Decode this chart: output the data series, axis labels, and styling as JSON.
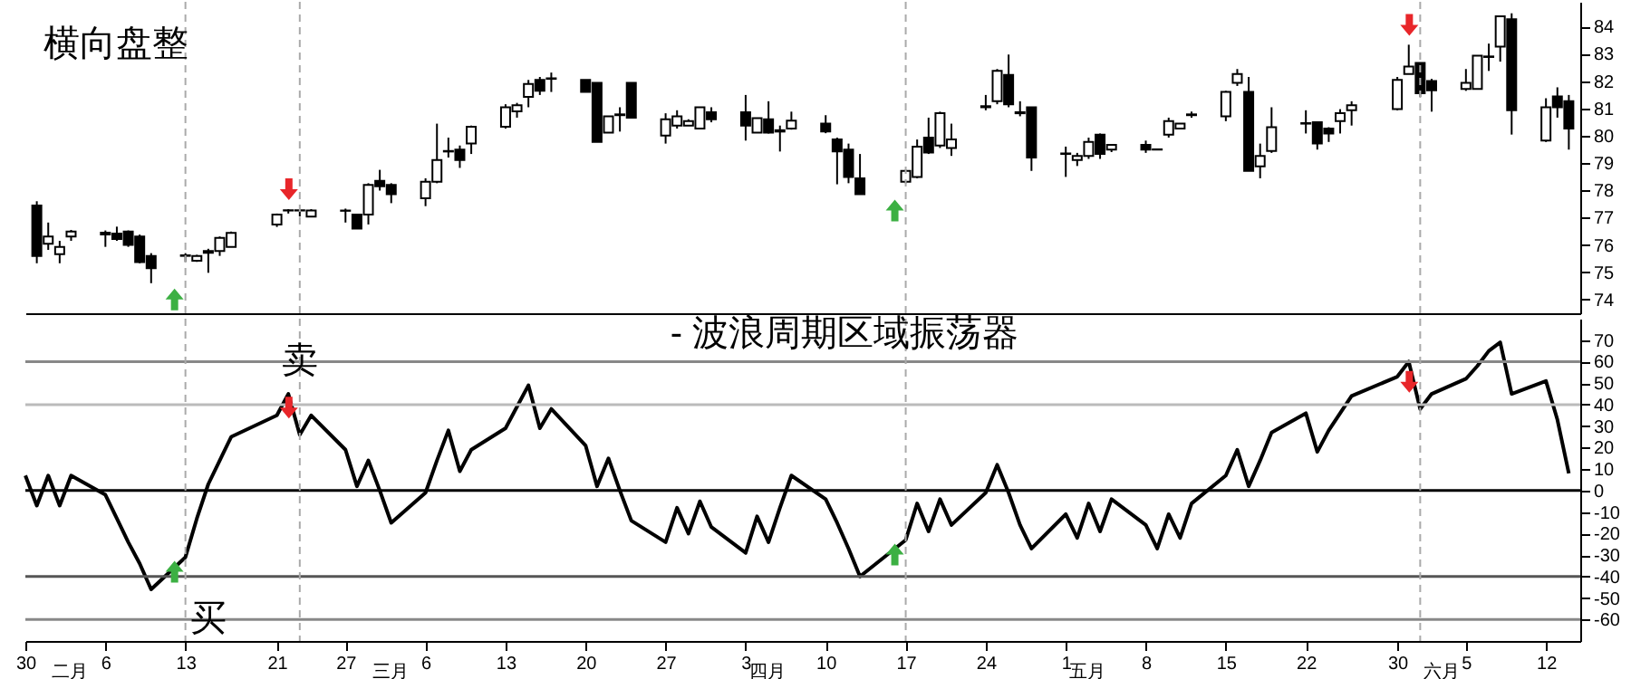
{
  "chart_data": [
    {
      "type": "candlestick",
      "title": "横向盘整",
      "tick_labels": "y",
      "x": [
        "--01-31",
        "--02-01",
        "--02-02",
        "--02-03",
        "--02-06",
        "--02-07",
        "--02-08",
        "--02-09",
        "--02-10",
        "--02-13",
        "--02-14",
        "--02-15",
        "--02-16",
        "--02-17",
        "--02-21",
        "--02-22",
        "--02-23",
        "--02-24",
        "--02-27",
        "--02-28",
        "--03-01",
        "--03-02",
        "--03-03",
        "--03-06",
        "--03-07",
        "--03-08",
        "--03-09",
        "--03-10",
        "--03-13",
        "--03-14",
        "--03-15",
        "--03-16",
        "--03-17",
        "--03-20",
        "--03-21",
        "--03-22",
        "--03-23",
        "--03-24",
        "--03-27",
        "--03-28",
        "--03-29",
        "--03-30",
        "--03-31",
        "--04-03",
        "--04-04",
        "--04-05",
        "--04-06",
        "--04-07",
        "--04-10",
        "--04-11",
        "--04-12",
        "--04-13",
        "--04-17",
        "--04-18",
        "--04-19",
        "--04-20",
        "--04-21",
        "--04-24",
        "--04-25",
        "--04-26",
        "--04-27",
        "--04-28",
        "--05-01",
        "--05-02",
        "--05-03",
        "--05-04",
        "--05-05",
        "--05-08",
        "--05-09",
        "--05-10",
        "--05-11",
        "--05-12",
        "--05-15",
        "--05-16",
        "--05-17",
        "--05-18",
        "--05-19",
        "--05-22",
        "--05-23",
        "--05-24",
        "--05-25",
        "--05-26",
        "--05-30",
        "--05-31",
        "--06-01",
        "--06-02",
        "--06-05",
        "--06-06",
        "--06-07",
        "--06-08",
        "--06-09",
        "--06-12",
        "--06-13",
        "--06-14"
      ],
      "ohlc": [
        [
          77.44,
          77.6,
          75.33,
          75.6
        ],
        [
          76.04,
          76.82,
          75.82,
          76.31
        ],
        [
          75.66,
          76.15,
          75.33,
          75.93
        ],
        [
          76.31,
          76.55,
          76.15,
          76.49
        ],
        [
          76.45,
          76.53,
          75.93,
          76.38
        ],
        [
          76.42,
          76.67,
          76.15,
          76.22
        ],
        [
          76.49,
          76.53,
          75.93,
          76.0
        ],
        [
          76.31,
          76.38,
          75.33,
          75.37
        ],
        [
          75.6,
          75.7,
          74.6,
          75.15
        ],
        [
          75.6,
          75.7,
          75.38,
          75.62
        ],
        [
          75.42,
          75.64,
          75.38,
          75.6
        ],
        [
          75.78,
          75.86,
          74.98,
          75.71
        ],
        [
          75.78,
          76.31,
          75.6,
          76.26
        ],
        [
          75.93,
          76.49,
          75.93,
          76.44
        ],
        [
          76.75,
          77.15,
          76.66,
          77.11
        ],
        [
          77.26,
          77.31,
          77.15,
          77.27
        ],
        [
          77.27,
          77.31,
          77.04,
          77.26
        ],
        [
          77.04,
          77.31,
          77.04,
          77.26
        ],
        [
          77.26,
          77.33,
          76.82,
          77.25
        ],
        [
          77.11,
          77.11,
          76.6,
          76.6
        ],
        [
          77.11,
          78.26,
          76.75,
          78.2
        ],
        [
          78.35,
          78.75,
          77.99,
          78.15
        ],
        [
          78.2,
          78.26,
          77.53,
          77.86
        ],
        [
          77.71,
          78.44,
          77.42,
          78.31
        ],
        [
          78.31,
          80.44,
          78.26,
          79.11
        ],
        [
          79.44,
          79.93,
          79.2,
          79.42
        ],
        [
          79.49,
          79.64,
          78.82,
          79.11
        ],
        [
          79.71,
          80.37,
          79.33,
          80.33
        ],
        [
          80.33,
          81.15,
          80.26,
          81.04
        ],
        [
          80.89,
          81.2,
          80.66,
          81.11
        ],
        [
          81.42,
          82.04,
          81.04,
          81.89
        ],
        [
          82.04,
          82.15,
          81.49,
          81.64
        ],
        [
          82.08,
          82.31,
          81.6,
          82.1
        ],
        [
          82.04,
          82.04,
          81.6,
          81.6
        ],
        [
          81.93,
          81.93,
          79.77,
          79.77
        ],
        [
          80.11,
          80.71,
          80.11,
          80.71
        ],
        [
          80.75,
          81.04,
          80.15,
          80.78
        ],
        [
          81.93,
          81.93,
          80.66,
          80.66
        ],
        [
          80.0,
          80.82,
          79.71,
          80.6
        ],
        [
          80.37,
          80.93,
          80.26,
          80.71
        ],
        [
          80.37,
          80.6,
          80.37,
          80.53
        ],
        [
          80.26,
          81.04,
          80.26,
          81.04
        ],
        [
          80.86,
          81.04,
          80.49,
          80.6
        ],
        [
          80.86,
          81.49,
          79.82,
          80.37
        ],
        [
          80.11,
          80.64,
          80.11,
          80.64
        ],
        [
          80.6,
          81.26,
          80.08,
          80.11
        ],
        [
          80.15,
          80.37,
          79.42,
          80.2
        ],
        [
          80.26,
          80.88,
          80.22,
          80.55
        ],
        [
          80.44,
          80.75,
          80.09,
          80.15
        ],
        [
          79.86,
          79.93,
          78.22,
          79.42
        ],
        [
          79.49,
          79.71,
          78.26,
          78.49
        ],
        [
          78.44,
          79.33,
          77.86,
          77.86
        ],
        [
          78.31,
          78.75,
          78.26,
          78.71
        ],
        [
          78.49,
          79.86,
          78.44,
          79.6
        ],
        [
          79.93,
          80.66,
          79.33,
          79.38
        ],
        [
          79.64,
          80.88,
          79.55,
          80.82
        ],
        [
          79.55,
          80.44,
          79.26,
          79.86
        ],
        [
          81.04,
          81.49,
          80.93,
          81.08
        ],
        [
          81.26,
          82.44,
          81.15,
          82.37
        ],
        [
          82.22,
          82.97,
          81.04,
          81.15
        ],
        [
          80.82,
          81.26,
          80.71,
          80.86
        ],
        [
          81.04,
          81.04,
          78.71,
          79.2
        ],
        [
          79.33,
          79.6,
          78.49,
          79.35
        ],
        [
          79.11,
          79.37,
          78.89,
          79.26
        ],
        [
          79.26,
          79.93,
          79.15,
          79.77
        ],
        [
          80.04,
          80.08,
          79.15,
          79.33
        ],
        [
          79.49,
          79.66,
          79.4,
          79.66
        ],
        [
          79.66,
          79.82,
          79.37,
          79.49
        ],
        [
          79.49,
          79.52,
          79.47,
          79.5
        ],
        [
          80.04,
          80.66,
          79.93,
          80.53
        ],
        [
          80.26,
          80.44,
          80.26,
          80.44
        ],
        [
          80.75,
          80.88,
          80.66,
          80.78
        ],
        [
          80.71,
          81.64,
          80.53,
          81.6
        ],
        [
          81.93,
          82.44,
          81.82,
          82.26
        ],
        [
          81.6,
          82.15,
          78.71,
          78.71
        ],
        [
          78.88,
          79.71,
          78.44,
          79.26
        ],
        [
          79.44,
          81.04,
          79.37,
          80.31
        ],
        [
          80.44,
          80.93,
          80.08,
          80.46
        ],
        [
          80.49,
          80.49,
          79.49,
          79.71
        ],
        [
          80.26,
          80.31,
          79.77,
          80.08
        ],
        [
          80.53,
          80.97,
          80.08,
          80.82
        ],
        [
          80.93,
          81.26,
          80.37,
          81.11
        ],
        [
          80.97,
          82.15,
          80.93,
          82.04
        ],
        [
          82.26,
          83.33,
          82.26,
          82.53
        ],
        [
          82.66,
          82.66,
          81.42,
          81.55
        ],
        [
          82.0,
          82.08,
          80.88,
          81.66
        ],
        [
          81.71,
          82.44,
          81.64,
          81.93
        ],
        [
          81.71,
          82.93,
          81.71,
          82.93
        ],
        [
          82.88,
          83.37,
          82.37,
          82.9
        ],
        [
          83.26,
          84.37,
          82.71,
          84.37
        ],
        [
          84.26,
          84.48,
          80.04,
          80.93
        ],
        [
          79.82,
          81.37,
          79.77,
          81.04
        ],
        [
          81.44,
          81.77,
          80.66,
          81.04
        ],
        [
          81.26,
          81.49,
          79.49,
          80.26
        ]
      ],
      "xlim": [
        "--01-30",
        "--06-15"
      ],
      "ylim": [
        73.5,
        84.9
      ],
      "yticks": [
        74,
        75,
        76,
        77,
        78,
        79,
        80,
        81,
        82,
        83,
        84
      ],
      "ref_lines": [
        {
          "axis": "x",
          "value": "--02-13",
          "color": "#aaaaaa",
          "line_style": "dashed"
        },
        {
          "axis": "x",
          "value": "--02-23",
          "color": "#aaaaaa",
          "line_style": "dashed"
        },
        {
          "axis": "x",
          "value": "--04-17",
          "color": "#aaaaaa",
          "line_style": "dashed"
        },
        {
          "axis": "x",
          "value": "--06-01",
          "color": "#aaaaaa",
          "line_style": "dashed"
        }
      ]
    },
    {
      "type": "line",
      "title": "- 波浪周期区域振荡器",
      "x": [
        "--01-30",
        "--01-31",
        "--02-01",
        "--02-02",
        "--02-03",
        "--02-06",
        "--02-07",
        "--02-08",
        "--02-09",
        "--02-10",
        "--02-13",
        "--02-14",
        "--02-15",
        "--02-16",
        "--02-17",
        "--02-21",
        "--02-22",
        "--02-23",
        "--02-24",
        "--02-27",
        "--02-28",
        "--03-01",
        "--03-02",
        "--03-03",
        "--03-06",
        "--03-07",
        "--03-08",
        "--03-09",
        "--03-10",
        "--03-13",
        "--03-14",
        "--03-15",
        "--03-16",
        "--03-17",
        "--03-20",
        "--03-21",
        "--03-22",
        "--03-23",
        "--03-24",
        "--03-27",
        "--03-28",
        "--03-29",
        "--03-30",
        "--03-31",
        "--04-03",
        "--04-04",
        "--04-05",
        "--04-06",
        "--04-07",
        "--04-10",
        "--04-11",
        "--04-12",
        "--04-13",
        "--04-17",
        "--04-18",
        "--04-19",
        "--04-20",
        "--04-21",
        "--04-24",
        "--04-25",
        "--04-26",
        "--04-27",
        "--04-28",
        "--05-01",
        "--05-02",
        "--05-03",
        "--05-04",
        "--05-05",
        "--05-08",
        "--05-09",
        "--05-10",
        "--05-11",
        "--05-12",
        "--05-15",
        "--05-16",
        "--05-17",
        "--05-18",
        "--05-19",
        "--05-22",
        "--05-23",
        "--05-24",
        "--05-25",
        "--05-26",
        "--05-30",
        "--05-31",
        "--06-01",
        "--06-02",
        "--06-05",
        "--06-06",
        "--06-07",
        "--06-08",
        "--06-09",
        "--06-12",
        "--06-13",
        "--06-14"
      ],
      "series": [
        {
          "color": "#000000",
          "values": [
            7,
            -7,
            7,
            -7,
            7,
            -2,
            -13,
            -24,
            -34,
            -46,
            -31,
            -13,
            3,
            14,
            25,
            35,
            45,
            26,
            35,
            19,
            2,
            14,
            0,
            -15,
            -1,
            14,
            28,
            9,
            19,
            29,
            39,
            49,
            29,
            38,
            21,
            2,
            15,
            0,
            -14,
            -24,
            -8,
            -20,
            -5,
            -17,
            -29,
            -12,
            -24,
            -8,
            7,
            -4,
            -15,
            -27,
            -40,
            -23,
            -6,
            -19,
            -4,
            -16,
            -1,
            12,
            -1,
            -16,
            -27,
            -11,
            -22,
            -6,
            -19,
            -4,
            -16,
            -27,
            -11,
            -22,
            -6,
            7,
            19,
            2,
            14,
            27,
            36,
            18,
            28,
            36,
            44,
            53,
            60,
            38,
            45,
            52,
            58,
            65,
            69,
            45,
            51,
            33,
            8
          ]
        }
      ],
      "xlim": [
        "--01-30",
        "--06-15"
      ],
      "ylim": [
        -70,
        80
      ],
      "yticks": [
        -60,
        -50,
        -40,
        -30,
        -20,
        -10,
        0,
        10,
        20,
        30,
        40,
        50,
        60,
        70
      ],
      "xticks": [
        {
          "value": "--01-30",
          "label": "30"
        },
        {
          "value": "--02-06",
          "label": "6"
        },
        {
          "value": "--02-13",
          "label": "13"
        },
        {
          "value": "--02-21",
          "label": "21"
        },
        {
          "value": "--02-27",
          "label": "27"
        },
        {
          "value": "--03-06",
          "label": "6"
        },
        {
          "value": "--03-13",
          "label": "13"
        },
        {
          "value": "--03-20",
          "label": "20"
        },
        {
          "value": "--03-27",
          "label": "27"
        },
        {
          "value": "--04-03",
          "label": "3"
        },
        {
          "value": "--04-10",
          "label": "10"
        },
        {
          "value": "--04-17",
          "label": "17"
        },
        {
          "value": "--04-24",
          "label": "24"
        },
        {
          "value": "--05-01",
          "label": "1"
        },
        {
          "value": "--05-08",
          "label": "8"
        },
        {
          "value": "--05-15",
          "label": "15"
        },
        {
          "value": "--05-22",
          "label": "22"
        },
        {
          "value": "--05-30",
          "label": "30"
        },
        {
          "value": "--06-05",
          "label": "5"
        },
        {
          "value": "--06-12",
          "label": "12"
        }
      ],
      "ref_lines": [
        {
          "axis": "y",
          "value": 60,
          "color": "#888888"
        },
        {
          "axis": "y",
          "value": 40,
          "color": "#bbbbbb"
        },
        {
          "axis": "y",
          "value": 0,
          "color": "#000000"
        },
        {
          "axis": "y",
          "value": -40,
          "color": "#555555"
        },
        {
          "axis": "y",
          "value": -60,
          "color": "#888888"
        },
        {
          "axis": "x",
          "value": "--02-13",
          "color": "#aaaaaa",
          "line_style": "dashed"
        },
        {
          "axis": "x",
          "value": "--02-23",
          "color": "#aaaaaa",
          "line_style": "dashed"
        },
        {
          "axis": "x",
          "value": "--04-17",
          "color": "#aaaaaa",
          "line_style": "dashed"
        },
        {
          "axis": "x",
          "value": "--06-01",
          "color": "#aaaaaa",
          "line_style": "dashed"
        }
      ],
      "annotations": [
        {
          "text": "卖",
          "x": "--02-23",
          "y": 60
        },
        {
          "text": "买",
          "x": "--02-15",
          "y": -60
        },
        "二月",
        "三月",
        "四月",
        "五月",
        "六月"
      ]
    }
  ]
}
